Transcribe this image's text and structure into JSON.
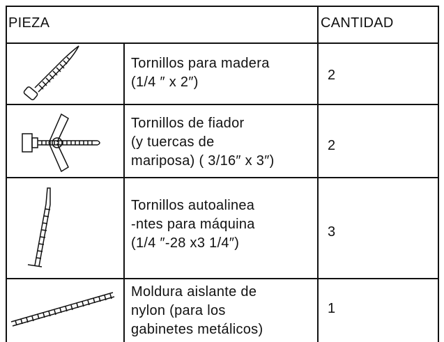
{
  "table": {
    "header": [
      "PIEZA",
      "CANTIDAD"
    ],
    "rows": [
      {
        "description": [
          "Tornillos para madera",
          "(1/4 ″ x 2″)"
        ],
        "quantity": 2
      },
      {
        "description": [
          "Tornillos de fiador",
          "(y tuercas de",
          "mariposa) ( 3/16″ x 3″)"
        ],
        "quantity": 2
      },
      {
        "description": [
          "Tornillos autoalinea",
          "-ntes para máquina",
          "(1/4 ″-28 x3 1/4″)"
        ],
        "quantity": 3
      },
      {
        "description": [
          "Moldura aislante de",
          "nylon (para los",
          "gabinetes metálicos)"
        ],
        "quantity": 1
      }
    ]
  }
}
